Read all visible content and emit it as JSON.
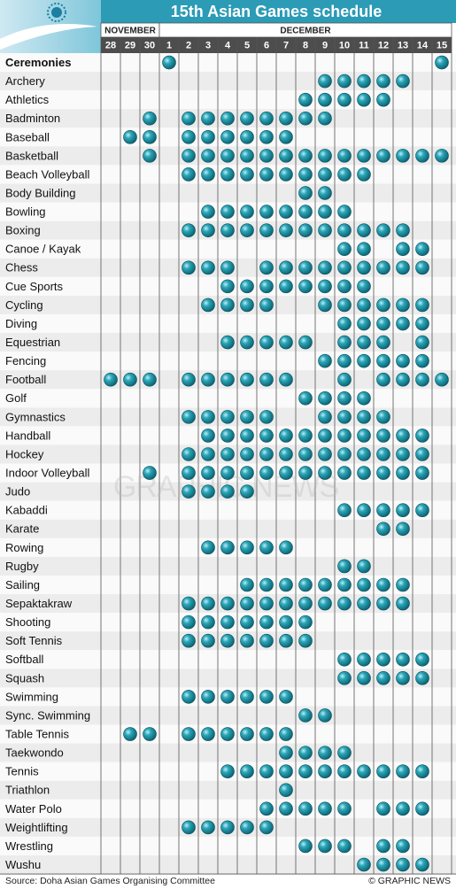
{
  "title": "15th Asian Games schedule",
  "months": [
    {
      "label": "NOVEMBER",
      "days": [
        "28",
        "29",
        "30"
      ]
    },
    {
      "label": "DECEMBER",
      "days": [
        "1",
        "2",
        "3",
        "4",
        "5",
        "6",
        "7",
        "8",
        "9",
        "10",
        "11",
        "12",
        "13",
        "14",
        "15"
      ]
    }
  ],
  "rows": [
    {
      "name": "Ceremonies",
      "days": [
        "1",
        "15"
      ]
    },
    {
      "name": "Archery",
      "days": [
        "9",
        "10",
        "11",
        "12",
        "13"
      ]
    },
    {
      "name": "Athletics",
      "days": [
        "8",
        "9",
        "10",
        "11",
        "12"
      ]
    },
    {
      "name": "Badminton",
      "days": [
        "30",
        "2",
        "3",
        "4",
        "5",
        "6",
        "7",
        "8",
        "9"
      ]
    },
    {
      "name": "Baseball",
      "days": [
        "29",
        "30",
        "2",
        "3",
        "4",
        "5",
        "6",
        "7"
      ]
    },
    {
      "name": "Basketball",
      "days": [
        "30",
        "2",
        "3",
        "4",
        "5",
        "6",
        "7",
        "8",
        "9",
        "10",
        "11",
        "12",
        "13",
        "14",
        "15"
      ]
    },
    {
      "name": "Beach Volleyball",
      "days": [
        "2",
        "3",
        "4",
        "5",
        "6",
        "7",
        "8",
        "9",
        "10",
        "11"
      ]
    },
    {
      "name": "Body Building",
      "days": [
        "8",
        "9"
      ]
    },
    {
      "name": "Bowling",
      "days": [
        "3",
        "4",
        "5",
        "6",
        "7",
        "8",
        "9",
        "10"
      ]
    },
    {
      "name": "Boxing",
      "days": [
        "2",
        "3",
        "4",
        "5",
        "6",
        "7",
        "8",
        "9",
        "10",
        "11",
        "12",
        "13"
      ]
    },
    {
      "name": "Canoe / Kayak",
      "days": [
        "10",
        "11",
        "13",
        "14"
      ]
    },
    {
      "name": "Chess",
      "days": [
        "2",
        "3",
        "4",
        "6",
        "7",
        "8",
        "9",
        "10",
        "11",
        "12",
        "13",
        "14"
      ]
    },
    {
      "name": "Cue Sports",
      "days": [
        "4",
        "5",
        "6",
        "7",
        "8",
        "9",
        "10",
        "11"
      ]
    },
    {
      "name": "Cycling",
      "days": [
        "3",
        "4",
        "5",
        "6",
        "9",
        "10",
        "11",
        "12",
        "13",
        "14"
      ]
    },
    {
      "name": "Diving",
      "days": [
        "10",
        "11",
        "12",
        "13",
        "14"
      ]
    },
    {
      "name": "Equestrian",
      "days": [
        "4",
        "5",
        "6",
        "7",
        "8",
        "10",
        "11",
        "12",
        "14"
      ]
    },
    {
      "name": "Fencing",
      "days": [
        "9",
        "10",
        "11",
        "12",
        "13",
        "14"
      ]
    },
    {
      "name": "Football",
      "days": [
        "28",
        "29",
        "30",
        "2",
        "3",
        "4",
        "5",
        "6",
        "7",
        "10",
        "12",
        "13",
        "14",
        "15"
      ]
    },
    {
      "name": "Golf",
      "days": [
        "8",
        "9",
        "10",
        "11"
      ]
    },
    {
      "name": "Gymnastics",
      "days": [
        "2",
        "3",
        "4",
        "5",
        "6",
        "9",
        "10",
        "11",
        "12"
      ]
    },
    {
      "name": "Handball",
      "days": [
        "3",
        "4",
        "5",
        "6",
        "7",
        "8",
        "9",
        "10",
        "11",
        "12",
        "13",
        "14"
      ]
    },
    {
      "name": "Hockey",
      "days": [
        "2",
        "3",
        "4",
        "5",
        "6",
        "7",
        "8",
        "9",
        "10",
        "11",
        "12",
        "13",
        "14"
      ]
    },
    {
      "name": "Indoor Volleyball",
      "days": [
        "30",
        "2",
        "3",
        "4",
        "5",
        "6",
        "7",
        "8",
        "9",
        "10",
        "11",
        "12",
        "13",
        "14"
      ]
    },
    {
      "name": "Judo",
      "days": [
        "2",
        "3",
        "4",
        "5"
      ]
    },
    {
      "name": "Kabaddi",
      "days": [
        "10",
        "11",
        "12",
        "13",
        "14"
      ]
    },
    {
      "name": "Karate",
      "days": [
        "12",
        "13"
      ]
    },
    {
      "name": "Rowing",
      "days": [
        "3",
        "4",
        "5",
        "6",
        "7"
      ]
    },
    {
      "name": "Rugby",
      "days": [
        "10",
        "11"
      ]
    },
    {
      "name": "Sailing",
      "days": [
        "5",
        "6",
        "7",
        "8",
        "9",
        "10",
        "11",
        "12",
        "13"
      ]
    },
    {
      "name": "Sepaktakraw",
      "days": [
        "2",
        "3",
        "4",
        "5",
        "6",
        "7",
        "8",
        "9",
        "10",
        "11",
        "12",
        "13"
      ]
    },
    {
      "name": "Shooting",
      "days": [
        "2",
        "3",
        "4",
        "5",
        "6",
        "7",
        "8"
      ]
    },
    {
      "name": "Soft Tennis",
      "days": [
        "2",
        "3",
        "4",
        "5",
        "6",
        "7",
        "8"
      ]
    },
    {
      "name": "Softball",
      "days": [
        "10",
        "11",
        "12",
        "13",
        "14"
      ]
    },
    {
      "name": "Squash",
      "days": [
        "10",
        "11",
        "12",
        "13",
        "14"
      ]
    },
    {
      "name": "Swimming",
      "days": [
        "2",
        "3",
        "4",
        "5",
        "6",
        "7"
      ]
    },
    {
      "name": "Sync. Swimming",
      "days": [
        "8",
        "9"
      ]
    },
    {
      "name": "Table Tennis",
      "days": [
        "29",
        "30",
        "2",
        "3",
        "4",
        "5",
        "6",
        "7"
      ]
    },
    {
      "name": "Taekwondo",
      "days": [
        "7",
        "8",
        "9",
        "10"
      ]
    },
    {
      "name": "Tennis",
      "days": [
        "4",
        "5",
        "6",
        "7",
        "8",
        "9",
        "10",
        "11",
        "12",
        "13",
        "14"
      ]
    },
    {
      "name": "Triathlon",
      "days": [
        "7"
      ]
    },
    {
      "name": "Water Polo",
      "days": [
        "6",
        "7",
        "8",
        "9",
        "10",
        "12",
        "13",
        "14"
      ]
    },
    {
      "name": "Weightlifting",
      "days": [
        "2",
        "3",
        "4",
        "5",
        "6"
      ]
    },
    {
      "name": "Wrestling",
      "days": [
        "8",
        "9",
        "10",
        "12",
        "13"
      ]
    },
    {
      "name": "Wushu",
      "days": [
        "11",
        "12",
        "13",
        "14"
      ]
    }
  ],
  "watermark": "GRAPHIC NEWS",
  "source": "Source: Doha Asian Games Organising Committee",
  "credit": "© GRAPHIC NEWS"
}
